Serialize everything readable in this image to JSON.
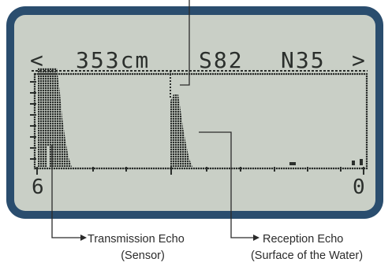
{
  "display": {
    "left_arrow": "<",
    "right_arrow": ">",
    "distance": "353cm",
    "s_value": "S82",
    "n_value": "N35",
    "range_left": "6",
    "range_right": "0"
  },
  "labels": {
    "transmission": {
      "line1": "Transmission Echo",
      "line2": "(Sensor)"
    },
    "reception": {
      "line1": "Reception Echo",
      "line2": "(Surface of the Water)"
    }
  },
  "colors": {
    "frame": "#2a4d6e",
    "screen": "#c9cfc6",
    "pixels": "#2b2f2c",
    "caption": "#2b2b2b"
  }
}
